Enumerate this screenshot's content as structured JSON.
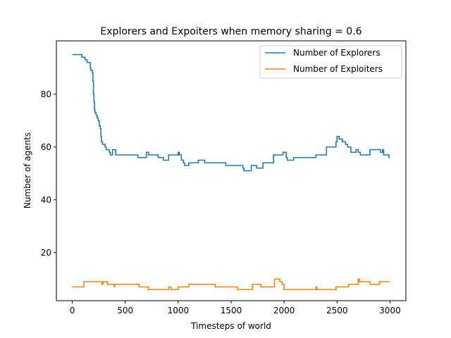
{
  "chart_data": {
    "type": "line",
    "title": "Explorers and Expoiters when memory sharing = 0.6",
    "xlabel": "Timesteps of world",
    "ylabel": "Number of agents",
    "xlim": [
      -150,
      3150
    ],
    "ylim": [
      1.8,
      100.2
    ],
    "xticks": [
      0,
      500,
      1000,
      1500,
      2000,
      2500,
      3000
    ],
    "yticks": [
      20,
      40,
      60,
      80
    ],
    "grid": false,
    "legend_position": "top-right",
    "series": [
      {
        "name": "Number of Explorers",
        "color": "#1f77b4",
        "step": true,
        "points": [
          [
            0,
            95
          ],
          [
            80,
            95
          ],
          [
            90,
            94
          ],
          [
            110,
            94
          ],
          [
            120,
            93
          ],
          [
            130,
            93
          ],
          [
            140,
            92
          ],
          [
            160,
            92
          ],
          [
            170,
            90
          ],
          [
            175,
            89
          ],
          [
            180,
            89
          ],
          [
            190,
            88
          ],
          [
            195,
            85
          ],
          [
            200,
            80
          ],
          [
            205,
            77
          ],
          [
            210,
            74
          ],
          [
            215,
            73
          ],
          [
            225,
            72
          ],
          [
            235,
            71
          ],
          [
            245,
            70
          ],
          [
            255,
            68
          ],
          [
            265,
            67
          ],
          [
            270,
            64
          ],
          [
            275,
            62
          ],
          [
            285,
            61
          ],
          [
            300,
            61
          ],
          [
            310,
            60
          ],
          [
            320,
            59
          ],
          [
            340,
            59
          ],
          [
            350,
            58
          ],
          [
            360,
            57
          ],
          [
            375,
            57
          ],
          [
            380,
            59
          ],
          [
            400,
            59
          ],
          [
            410,
            57
          ],
          [
            450,
            57
          ],
          [
            500,
            57
          ],
          [
            600,
            57
          ],
          [
            620,
            56
          ],
          [
            690,
            56
          ],
          [
            700,
            58
          ],
          [
            720,
            57
          ],
          [
            800,
            57
          ],
          [
            810,
            56
          ],
          [
            850,
            56
          ],
          [
            860,
            55
          ],
          [
            900,
            55
          ],
          [
            910,
            57
          ],
          [
            990,
            57
          ],
          [
            1000,
            58
          ],
          [
            1010,
            57
          ],
          [
            1030,
            55
          ],
          [
            1050,
            54
          ],
          [
            1060,
            53
          ],
          [
            1090,
            53
          ],
          [
            1100,
            54
          ],
          [
            1180,
            54
          ],
          [
            1190,
            55
          ],
          [
            1240,
            55
          ],
          [
            1250,
            54
          ],
          [
            1440,
            54
          ],
          [
            1450,
            53
          ],
          [
            1600,
            53
          ],
          [
            1610,
            52
          ],
          [
            1620,
            51
          ],
          [
            1680,
            51
          ],
          [
            1690,
            53
          ],
          [
            1730,
            53
          ],
          [
            1740,
            52
          ],
          [
            1790,
            52
          ],
          [
            1800,
            54
          ],
          [
            1890,
            54
          ],
          [
            1900,
            57
          ],
          [
            1980,
            57
          ],
          [
            1990,
            58
          ],
          [
            2010,
            58
          ],
          [
            2020,
            56
          ],
          [
            2030,
            55
          ],
          [
            2080,
            55
          ],
          [
            2090,
            56
          ],
          [
            2290,
            56
          ],
          [
            2300,
            57
          ],
          [
            2390,
            57
          ],
          [
            2400,
            60
          ],
          [
            2480,
            60
          ],
          [
            2490,
            62
          ],
          [
            2500,
            64
          ],
          [
            2520,
            63
          ],
          [
            2550,
            62
          ],
          [
            2580,
            61
          ],
          [
            2600,
            60
          ],
          [
            2630,
            58
          ],
          [
            2660,
            58
          ],
          [
            2680,
            59
          ],
          [
            2700,
            58
          ],
          [
            2720,
            57
          ],
          [
            2800,
            57
          ],
          [
            2810,
            59
          ],
          [
            2900,
            59
          ],
          [
            2910,
            58
          ],
          [
            2930,
            59
          ],
          [
            2940,
            57
          ],
          [
            2990,
            56
          ],
          [
            3000,
            56
          ]
        ]
      },
      {
        "name": "Number of Exploiters",
        "color": "#ff7f0e",
        "step": true,
        "points": [
          [
            0,
            7
          ],
          [
            100,
            7
          ],
          [
            110,
            9
          ],
          [
            270,
            9
          ],
          [
            280,
            8
          ],
          [
            290,
            9
          ],
          [
            320,
            9
          ],
          [
            330,
            8
          ],
          [
            390,
            8
          ],
          [
            395,
            7
          ],
          [
            400,
            8
          ],
          [
            620,
            8
          ],
          [
            630,
            7
          ],
          [
            710,
            7
          ],
          [
            720,
            6
          ],
          [
            900,
            6
          ],
          [
            910,
            7
          ],
          [
            930,
            6
          ],
          [
            980,
            6
          ],
          [
            1000,
            7
          ],
          [
            1090,
            7
          ],
          [
            1100,
            8
          ],
          [
            1340,
            8
          ],
          [
            1350,
            7
          ],
          [
            1550,
            7
          ],
          [
            1560,
            6
          ],
          [
            1690,
            6
          ],
          [
            1700,
            8
          ],
          [
            1770,
            8
          ],
          [
            1780,
            7
          ],
          [
            1900,
            7
          ],
          [
            1910,
            10
          ],
          [
            1950,
            10
          ],
          [
            1960,
            9
          ],
          [
            1980,
            8
          ],
          [
            2000,
            6
          ],
          [
            2290,
            6
          ],
          [
            2300,
            7
          ],
          [
            2310,
            6
          ],
          [
            2480,
            6
          ],
          [
            2490,
            7
          ],
          [
            2600,
            7
          ],
          [
            2610,
            8
          ],
          [
            2690,
            8
          ],
          [
            2700,
            10
          ],
          [
            2710,
            9
          ],
          [
            2800,
            9
          ],
          [
            2810,
            8
          ],
          [
            2890,
            8
          ],
          [
            2900,
            9
          ],
          [
            3000,
            9
          ]
        ]
      }
    ]
  }
}
